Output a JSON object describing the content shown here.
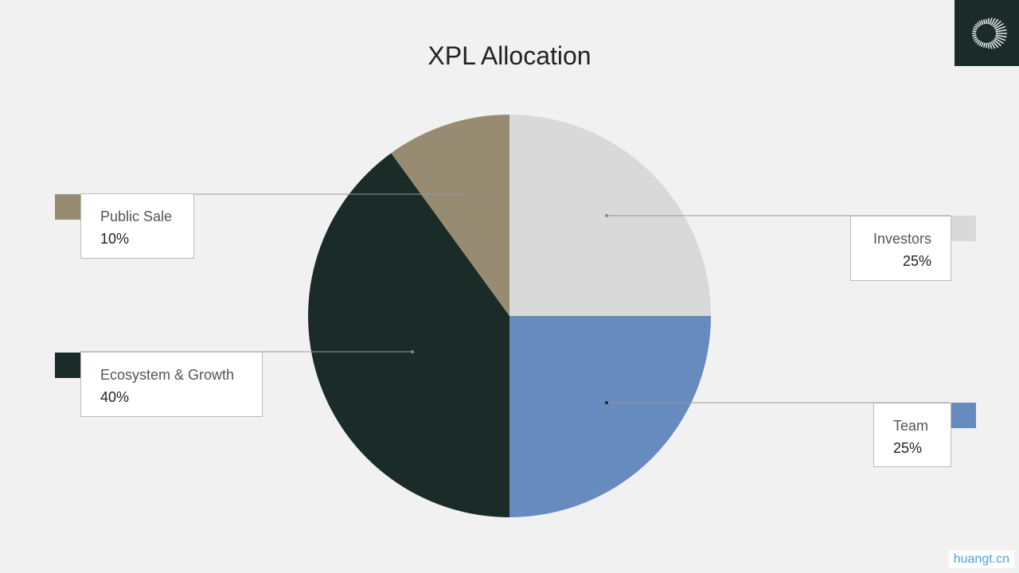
{
  "chart_data": {
    "type": "pie",
    "title": "XPL Allocation",
    "slices": [
      {
        "name": "Investors",
        "value": 25,
        "label": "25%",
        "color": "#d9d9d9"
      },
      {
        "name": "Team",
        "value": 25,
        "label": "25%",
        "color": "#678bbf"
      },
      {
        "name": "Ecosystem & Growth",
        "value": 40,
        "label": "40%",
        "color": "#1b2b27"
      },
      {
        "name": "Public Sale",
        "value": 10,
        "label": "10%",
        "color": "#978c72"
      }
    ],
    "start": "top",
    "direction": "clockwise"
  },
  "watermark": "huangt.cn"
}
